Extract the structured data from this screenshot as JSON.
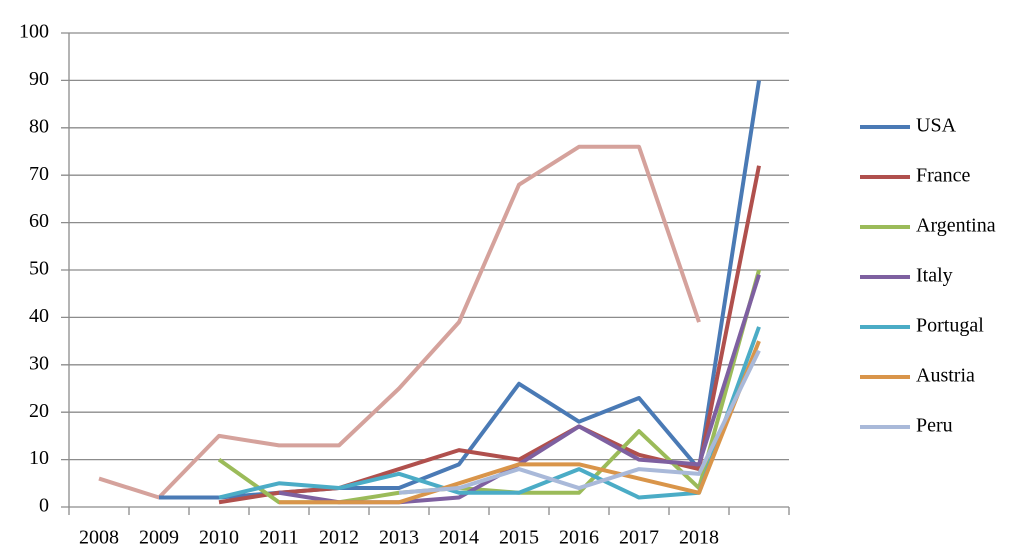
{
  "chart_data": {
    "type": "line",
    "categories": [
      "2008",
      "2009",
      "2010",
      "2011",
      "2012",
      "2013",
      "2014",
      "2015",
      "2016",
      "2017",
      "2018",
      null
    ],
    "series": [
      {
        "color": "#d5a29c",
        "values": [
          6,
          2,
          15,
          13,
          13,
          25,
          39,
          68,
          76,
          76,
          39,
          null
        ]
      },
      {
        "name": "USA",
        "color": "#4a7ab5",
        "values": [
          null,
          2,
          2,
          3,
          4,
          4,
          9,
          26,
          18,
          23,
          8,
          90
        ]
      },
      {
        "name": "France",
        "color": "#b0504d",
        "values": [
          null,
          null,
          1,
          3,
          4,
          8,
          12,
          10,
          17,
          11,
          8,
          72
        ]
      },
      {
        "name": "Argentina",
        "color": "#9bbb59",
        "values": [
          null,
          null,
          10,
          1,
          1,
          3,
          4,
          3,
          3,
          16,
          4,
          50
        ]
      },
      {
        "name": "Italy",
        "color": "#7e60a0",
        "values": [
          null,
          null,
          null,
          3,
          1,
          1,
          2,
          9,
          17,
          10,
          9,
          49
        ]
      },
      {
        "name": "Portugal",
        "color": "#4bacc6",
        "values": [
          null,
          null,
          2,
          5,
          4,
          7,
          3,
          3,
          8,
          2,
          3,
          38
        ]
      },
      {
        "name": "Austria",
        "color": "#d9954a",
        "values": [
          null,
          null,
          null,
          1,
          1,
          1,
          5,
          9,
          9,
          6,
          3,
          35
        ]
      },
      {
        "name": "Peru",
        "color": "#a9b9d9",
        "values": [
          null,
          null,
          null,
          null,
          null,
          3,
          4,
          8,
          4,
          8,
          7,
          33
        ]
      }
    ],
    "ylim": [
      0,
      100
    ],
    "yticks": [
      0,
      10,
      20,
      30,
      40,
      50,
      60,
      70,
      80,
      90,
      100
    ],
    "grid": true,
    "legend": "right"
  }
}
